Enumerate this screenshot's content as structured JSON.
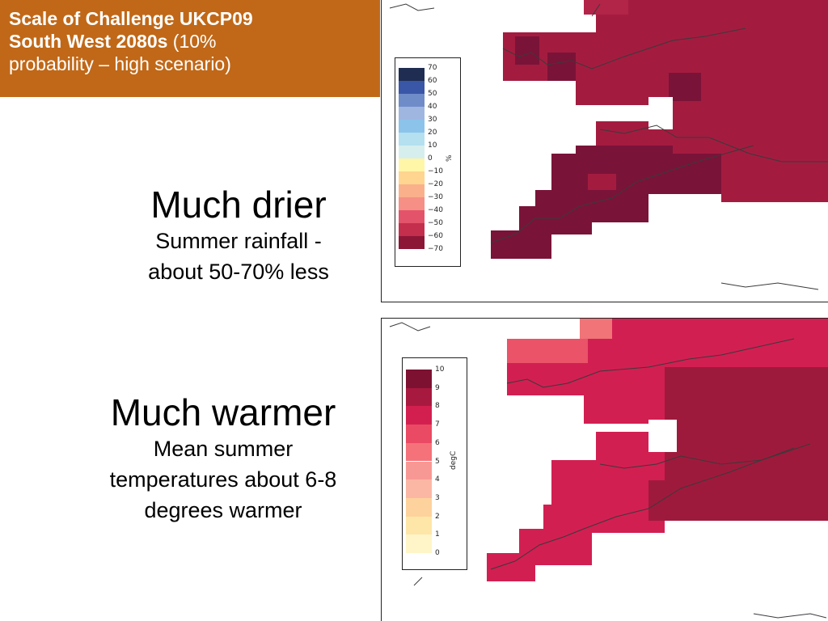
{
  "title": {
    "line1": "Scale of Challenge UKCP09",
    "line2_bold": "South West 2080s",
    "line2_normal": " (10%",
    "line3": "probability – high scenario)"
  },
  "rainfall_block": {
    "heading": "Much drier",
    "line1": "Summer rainfall -",
    "line2": "about 50-70% less"
  },
  "temperature_block": {
    "heading": "Much warmer",
    "line1": "Mean summer",
    "line2": "temperatures about 6-8",
    "line3": "degrees warmer"
  },
  "rainfall_map": {
    "legend_unit": "%",
    "legend_ticks": [
      "70",
      "60",
      "50",
      "40",
      "30",
      "20",
      "10",
      "0",
      "−10",
      "−20",
      "−30",
      "−40",
      "−50",
      "−60",
      "−70"
    ],
    "legend_colors": [
      "#1f2d52",
      "#3a56a6",
      "#6f8cc9",
      "#9fb6e0",
      "#8cc3ea",
      "#b4e0f0",
      "#d6eeee",
      "#fff6a8",
      "#ffd58f",
      "#fbb08c",
      "#f68f86",
      "#e3546b",
      "#c42f4e",
      "#8c1636"
    ],
    "cell_colors": {
      "dark": "#7a1338",
      "mid": "#a31c40",
      "light": "#b32449"
    }
  },
  "temperature_map": {
    "legend_unit": "degC",
    "legend_ticks": [
      "10",
      "9",
      "8",
      "7",
      "6",
      "5",
      "4",
      "3",
      "2",
      "1",
      "0"
    ],
    "legend_colors": [
      "#7d1131",
      "#a7193f",
      "#d31f50",
      "#ea4a63",
      "#f5727a",
      "#f89894",
      "#fbb7a4",
      "#fdd29c",
      "#fee6a8",
      "#fff5c8"
    ],
    "cell_colors": {
      "dark": "#9e1a3c",
      "mid": "#d21f52",
      "light": "#ea5368",
      "pale": "#f07478"
    }
  }
}
